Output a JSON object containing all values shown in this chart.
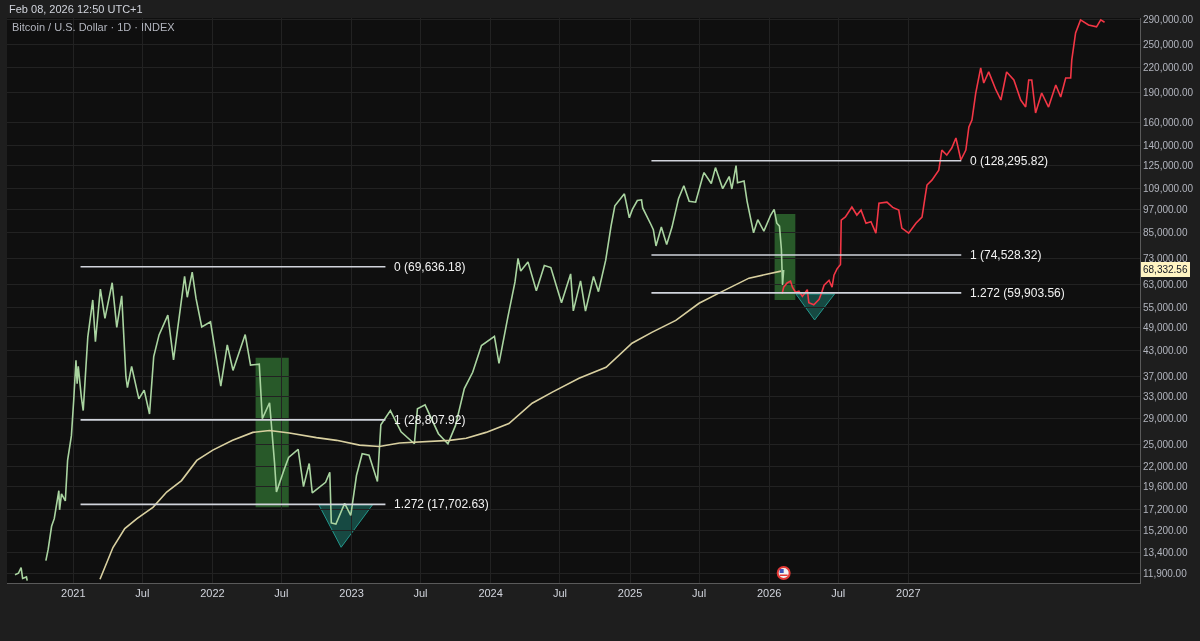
{
  "chart_data": {
    "type": "line",
    "title": "Bitcoin / U.S. Dollar · 1D · INDEX",
    "subtitle": "Feb 08, 2026 12:50 UTC+1",
    "log": true,
    "grid": true,
    "xlim": [
      "2020-07-11",
      "2028-08-31"
    ],
    "xticks": [
      {
        "value": "2021",
        "label": "2021"
      },
      {
        "value": "2021-07",
        "label": "Jul"
      },
      {
        "value": "2022",
        "label": "2022"
      },
      {
        "value": "2022-07",
        "label": "Jul"
      },
      {
        "value": "2023",
        "label": "2023"
      },
      {
        "value": "2023-07",
        "label": "Jul"
      },
      {
        "value": "2024",
        "label": "2024"
      },
      {
        "value": "2024-07",
        "label": "Jul"
      },
      {
        "value": "2025",
        "label": "2025"
      },
      {
        "value": "2025-07",
        "label": "Jul"
      },
      {
        "value": "2026",
        "label": "2026"
      },
      {
        "value": "2026-07",
        "label": "Jul"
      },
      {
        "value": "2027",
        "label": "2027"
      }
    ],
    "ylim": [
      11250,
      292000
    ],
    "yticks": [
      {
        "value": 11900,
        "label": "11,900.00"
      },
      {
        "value": 13400,
        "label": "13,400.00"
      },
      {
        "value": 15200,
        "label": "15,200.00"
      },
      {
        "value": 17200,
        "label": "17,200.00"
      },
      {
        "value": 19600,
        "label": "19,600.00"
      },
      {
        "value": 22000,
        "label": "22,000.00"
      },
      {
        "value": 25000,
        "label": "25,000.00"
      },
      {
        "value": 29000,
        "label": "29,000.00"
      },
      {
        "value": 33000,
        "label": "33,000.00"
      },
      {
        "value": 37000,
        "label": "37,000.00"
      },
      {
        "value": 43000,
        "label": "43,000.00"
      },
      {
        "value": 49000,
        "label": "49,000.00"
      },
      {
        "value": 55000,
        "label": "55,000.00"
      },
      {
        "value": 63000,
        "label": "63,000.00"
      },
      {
        "value": 73000,
        "label": "73,000.00"
      },
      {
        "value": 85000,
        "label": "85,000.00"
      },
      {
        "value": 97000,
        "label": "97,000.00"
      },
      {
        "value": 109000,
        "label": "109,000.00"
      },
      {
        "value": 125000,
        "label": "125,000.00"
      },
      {
        "value": 140000,
        "label": "140,000.00"
      },
      {
        "value": 160000,
        "label": "160,000.00"
      },
      {
        "value": 190000,
        "label": "190,000.00"
      },
      {
        "value": 220000,
        "label": "220,000.00"
      },
      {
        "value": 250000,
        "label": "250,000.00"
      },
      {
        "value": 290000,
        "label": "290,000.00"
      }
    ],
    "series": [
      {
        "color": "#a9d4a0",
        "x": [
          "2020-08-01",
          "2020-08-10",
          "2020-08-17",
          "2020-08-21",
          "2020-08-31",
          "2020-09-02",
          "2020-09-05",
          "2020-10-21",
          "2020-10-27",
          "2020-11-05",
          "2020-11-12",
          "2020-11-24",
          "2020-11-26",
          "2020-12-01",
          "2020-12-11",
          "2020-12-17",
          "2020-12-27",
          "2021-01-02",
          "2021-01-08",
          "2021-01-11",
          "2021-01-14",
          "2021-01-22",
          "2021-01-27",
          "2021-02-08",
          "2021-02-21",
          "2021-02-28",
          "2021-03-13",
          "2021-03-25",
          "2021-04-13",
          "2021-04-25",
          "2021-05-08",
          "2021-05-19",
          "2021-05-23",
          "2021-06-03",
          "2021-06-22",
          "2021-07-06",
          "2021-07-20",
          "2021-07-31",
          "2021-08-14",
          "2021-09-06",
          "2021-09-21",
          "2021-10-20",
          "2021-10-27",
          "2021-11-09",
          "2021-11-19",
          "2021-12-04",
          "2021-12-27",
          "2022-01-10",
          "2022-01-23",
          "2022-02-09",
          "2022-02-24",
          "2022-03-28",
          "2022-04-11",
          "2022-05-04",
          "2022-05-12",
          "2022-05-31",
          "2022-06-13",
          "2022-06-18",
          "2022-07-08",
          "2022-07-20",
          "2022-08-14",
          "2022-08-28",
          "2022-09-12",
          "2022-09-20",
          "2022-10-25",
          "2022-11-05",
          "2022-11-09",
          "2022-11-21",
          "2022-12-14",
          "2022-12-30",
          "2023-01-14",
          "2023-01-29",
          "2023-02-16",
          "2023-03-10",
          "2023-03-19",
          "2023-04-13",
          "2023-05-11",
          "2023-06-15",
          "2023-06-23",
          "2023-07-13",
          "2023-08-17",
          "2023-09-11",
          "2023-10-01",
          "2023-10-24",
          "2023-11-15",
          "2023-12-08",
          "2024-01-11",
          "2024-01-23",
          "2024-02-15",
          "2024-03-05",
          "2024-03-13",
          "2024-03-20",
          "2024-04-08",
          "2024-04-30",
          "2024-05-21",
          "2024-06-07",
          "2024-07-05",
          "2024-07-29",
          "2024-08-05",
          "2024-08-24",
          "2024-09-06",
          "2024-09-27",
          "2024-10-10",
          "2024-10-29",
          "2024-11-12",
          "2024-11-22",
          "2024-12-17",
          "2024-12-30",
          "2025-01-07",
          "2025-01-20",
          "2025-01-31",
          "2025-02-03",
          "2025-02-25",
          "2025-03-03",
          "2025-03-10",
          "2025-03-24",
          "2025-04-07",
          "2025-04-21",
          "2025-05-08",
          "2025-05-22",
          "2025-06-05",
          "2025-06-22",
          "2025-07-11",
          "2025-07-14",
          "2025-08-02",
          "2025-08-13",
          "2025-09-01",
          "2025-09-18",
          "2025-09-25",
          "2025-10-06",
          "2025-10-10",
          "2025-10-27",
          "2025-11-04",
          "2025-11-21",
          "2025-12-02",
          "2025-12-18",
          "2026-01-05",
          "2026-01-14",
          "2026-01-21",
          "2026-01-28",
          "2026-02-02",
          "2026-02-05",
          "2026-02-08"
        ],
        "values": [
          11800,
          11900,
          12300,
          11550,
          11650,
          11400,
          null,
          12800,
          13650,
          15600,
          16300,
          19150,
          17150,
          18800,
          18050,
          22800,
          26300,
          32200,
          40600,
          35500,
          39200,
          32900,
          30400,
          46400,
          57500,
          45200,
          61200,
          51700,
          63500,
          49100,
          58900,
          37000,
          34700,
          39200,
          32500,
          34200,
          29800,
          41500,
          47000,
          52700,
          40700,
          65900,
          58400,
          67500,
          58000,
          49200,
          50700,
          41800,
          35000,
          44400,
          38300,
          47100,
          39500,
          39700,
          29000,
          31800,
          22500,
          19000,
          21600,
          23200,
          24300,
          19600,
          22400,
          18900,
          20100,
          21300,
          15900,
          15800,
          17800,
          16600,
          20900,
          23700,
          23500,
          20200,
          28000,
          30400,
          26900,
          25100,
          30700,
          31400,
          26600,
          25100,
          27900,
          34500,
          37900,
          44200,
          46600,
          39900,
          51900,
          63800,
          73100,
          67900,
          71600,
          60600,
          70100,
          69300,
          56600,
          66800,
          54000,
          64200,
          53900,
          65800,
          60300,
          72300,
          88000,
          98900,
          106000,
          92300,
          96900,
          102000,
          102400,
          97700,
          88700,
          86200,
          78500,
          87500,
          79200,
          87500,
          103000,
          111000,
          101500,
          101000,
          117500,
          119800,
          112500,
          123300,
          109200,
          117100,
          109000,
          124700,
          113000,
          114100,
          101500,
          84700,
          91300,
          85500,
          93800,
          96900,
          89500,
          88000,
          77000,
          62700,
          68332.56
        ]
      },
      {
        "color": "#f23645",
        "x": [
          "2026-02-04",
          "2026-02-08",
          "2026-02-17",
          "2026-02-26",
          "2026-03-03",
          "2026-03-11",
          "2026-03-20",
          "2026-03-29",
          "2026-04-11",
          "2026-04-15",
          "2026-04-28",
          "2026-05-12",
          "2026-05-19",
          "2026-05-25",
          "2026-06-07",
          "2026-06-15",
          "2026-06-20",
          "2026-06-28",
          "2026-07-07",
          "2026-07-09",
          "2026-07-20",
          "2026-08-06",
          "2026-08-19",
          "2026-08-30",
          "2026-09-12",
          "2026-09-25",
          "2026-10-08",
          "2026-10-16",
          "2026-11-06",
          "2026-11-21",
          "2026-12-07",
          "2026-12-15",
          "2027-01-02",
          "2027-01-21",
          "2027-02-06",
          "2027-02-14",
          "2027-02-19",
          "2027-03-04",
          "2027-03-22",
          "2027-03-30",
          "2027-04-12",
          "2027-04-25",
          "2027-05-06",
          "2027-05-19",
          "2027-06-01",
          "2027-06-09",
          "2027-06-17",
          "2027-06-27",
          "2027-07-10",
          "2027-07-18",
          "2027-07-31",
          "2027-08-19",
          "2027-09-01",
          "2027-09-16",
          "2027-10-05",
          "2027-10-23",
          "2027-11-05",
          "2027-11-13",
          "2027-11-21",
          "2027-12-01",
          "2027-12-17",
          "2028-01-04",
          "2028-01-23",
          "2028-02-05",
          "2028-02-18",
          "2028-03-02",
          "2028-03-05",
          "2028-03-15",
          "2028-03-28",
          "2028-04-18",
          "2028-05-09",
          "2028-05-20",
          "2028-05-30"
        ],
        "values": [
          59600,
          61900,
          63400,
          64100,
          61900,
          60100,
          60500,
          58700,
          61000,
          56600,
          55900,
          57700,
          60100,
          62600,
          64400,
          61900,
          66300,
          68800,
          70500,
          91100,
          92800,
          98200,
          93800,
          96500,
          89500,
          90300,
          84500,
          100400,
          101000,
          98000,
          96500,
          87000,
          84500,
          89500,
          92700,
          104000,
          111500,
          114700,
          121500,
          136400,
          132500,
          138000,
          146200,
          128800,
          136400,
          155800,
          162200,
          189500,
          219000,
          200800,
          214000,
          192900,
          182000,
          214000,
          204300,
          182000,
          174800,
          204300,
          204300,
          168900,
          189500,
          174800,
          198500,
          185200,
          206700,
          206700,
          229300,
          268000,
          288800,
          280600,
          277400,
          288800,
          285000
        ]
      },
      {
        "color": "#d9d0a0",
        "x": [
          "2021-03-12",
          "2021-04-15",
          "2021-05-16",
          "2021-06-17",
          "2021-07-29",
          "2021-09-03",
          "2021-10-12",
          "2021-11-21",
          "2022-01-02",
          "2022-02-23",
          "2022-04-17",
          "2022-05-31",
          "2022-07-22",
          "2022-10-01",
          "2022-11-23",
          "2023-01-22",
          "2023-03-15",
          "2023-05-07",
          "2023-09-15",
          "2023-10-29",
          "2023-12-20",
          "2024-02-18",
          "2024-04-19",
          "2024-06-11",
          "2024-08-20",
          "2024-10-30",
          "2025-01-06",
          "2025-02-27",
          "2025-05-01",
          "2025-07-01",
          "2025-08-22",
          "2025-11-09",
          "2026-02-01"
        ],
        "values": [
          11500,
          13800,
          15400,
          16300,
          17400,
          19000,
          20300,
          22800,
          24200,
          25600,
          26800,
          27100,
          26700,
          26000,
          25600,
          24900,
          24700,
          25200,
          25600,
          25900,
          26800,
          28200,
          31700,
          33800,
          36600,
          39000,
          44800,
          47700,
          51100,
          56400,
          59800,
          65200,
          67900
        ]
      },
      {
        "name": "0 (69,636.18)",
        "color": "#d1d4dc",
        "x": [
          "2021-01-20",
          "2023-03-31"
        ],
        "values": [
          69636.18,
          69636.18
        ]
      },
      {
        "name": "1 (28,807.92)",
        "color": "#d1d4dc",
        "x": [
          "2021-01-20",
          "2023-03-31"
        ],
        "values": [
          28807.92,
          28807.92
        ]
      },
      {
        "name": "1.272 (17,702.63)",
        "color": "#d1d4dc",
        "x": [
          "2021-01-20",
          "2023-03-31"
        ],
        "values": [
          17702.63,
          17702.63
        ]
      },
      {
        "name": "0 (128,295.82)",
        "color": "#d1d4dc",
        "x": [
          "2025-02-26",
          "2027-05-20"
        ],
        "values": [
          128295.82,
          128295.82
        ]
      },
      {
        "name": "1 (74,528.32)",
        "color": "#d1d4dc",
        "x": [
          "2025-02-26",
          "2027-05-20"
        ],
        "values": [
          74528.32,
          74528.32
        ]
      },
      {
        "name": "1.272 (59,903.56)",
        "color": "#d1d4dc",
        "x": [
          "2025-02-26",
          "2027-05-20"
        ],
        "values": [
          59903.56,
          59903.56
        ]
      }
    ],
    "annotations": [
      "68,332.56"
    ]
  }
}
